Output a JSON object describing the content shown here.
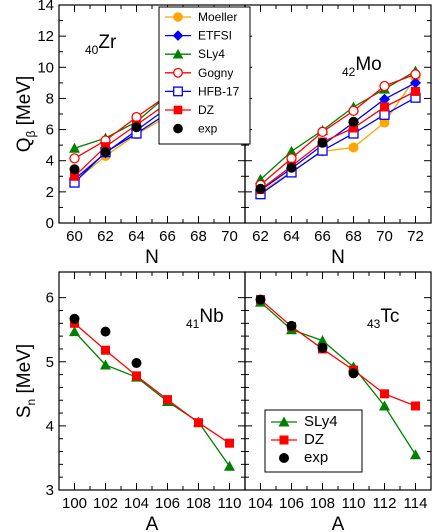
{
  "chart_data": [
    {
      "type": "line",
      "panel": "top-left",
      "annotation": {
        "sub": "40",
        "element": "Zr"
      },
      "xlabel": "N",
      "ylabel": {
        "main": "Q",
        "sub": "β",
        "unit": " [MeV]"
      },
      "xlim": [
        59,
        71
      ],
      "ylim": [
        0,
        14
      ],
      "xticks": [
        60,
        62,
        64,
        66,
        68,
        70
      ],
      "yticks": [
        0,
        2,
        4,
        6,
        8,
        10,
        12,
        14
      ],
      "x": [
        60,
        62,
        64,
        66,
        68,
        70
      ],
      "series": [
        {
          "name": "Moeller",
          "color": "#ffa500",
          "marker": "circle-filled",
          "values": [
            2.65,
            4.3,
            5.7,
            6.85,
            7.75,
            9.3
          ]
        },
        {
          "name": "ETFSI",
          "color": "#0000ff",
          "marker": "diamond-filled",
          "values": [
            2.8,
            4.5,
            5.95,
            7.4,
            8.55,
            9.7
          ]
        },
        {
          "name": "SLy4",
          "color": "#008000",
          "marker": "triangle-filled",
          "values": [
            4.8,
            5.45,
            6.5,
            8.2,
            9.8,
            11.3
          ]
        },
        {
          "name": "Gogny",
          "color": "#ff0000",
          "marker": "circle-open",
          "values": [
            4.15,
            5.3,
            6.8,
            8.2,
            9.65,
            10.1
          ]
        },
        {
          "name": "HFB-17",
          "color": "#0000ff",
          "marker": "square-open",
          "values": [
            2.6,
            4.55,
            5.75,
            7.05,
            8.25,
            9.55
          ]
        },
        {
          "name": "DZ",
          "color": "#ff0000",
          "marker": "square-filled",
          "values": [
            3.0,
            4.9,
            6.3,
            7.7,
            8.75,
            10.0
          ]
        },
        {
          "name": "exp",
          "color": "#000000",
          "marker": "circle-filled",
          "line": false,
          "values": [
            3.45,
            4.55,
            6.15,
            null,
            null,
            null
          ]
        }
      ]
    },
    {
      "type": "line",
      "panel": "top-right",
      "annotation": {
        "sub": "42",
        "element": "Mo"
      },
      "xlabel": "N",
      "xlim": [
        61,
        73
      ],
      "ylim": [
        0,
        14
      ],
      "xticks": [
        62,
        64,
        66,
        68,
        70,
        72
      ],
      "x": [
        62,
        64,
        66,
        68,
        70,
        72
      ],
      "series": [
        {
          "name": "Moeller",
          "color": "#ffa500",
          "marker": "circle-filled",
          "values": [
            1.95,
            3.3,
            4.6,
            4.85,
            6.45,
            9.35
          ]
        },
        {
          "name": "ETFSI",
          "color": "#0000ff",
          "marker": "diamond-filled",
          "values": [
            2.1,
            3.5,
            5.0,
            6.45,
            7.95,
            9.0
          ]
        },
        {
          "name": "SLy4",
          "color": "#008000",
          "marker": "triangle-filled",
          "values": [
            2.8,
            4.6,
            5.95,
            7.45,
            8.6,
            9.75
          ]
        },
        {
          "name": "Gogny",
          "color": "#ff0000",
          "marker": "circle-open",
          "values": [
            2.45,
            4.15,
            5.85,
            7.2,
            8.8,
            9.55
          ]
        },
        {
          "name": "HFB-17",
          "color": "#0000ff",
          "marker": "square-open",
          "values": [
            1.85,
            3.25,
            4.65,
            5.75,
            6.95,
            8.05
          ]
        },
        {
          "name": "DZ",
          "color": "#ff0000",
          "marker": "square-filled",
          "values": [
            2.15,
            3.65,
            5.2,
            6.1,
            7.45,
            8.45
          ]
        },
        {
          "name": "exp",
          "color": "#000000",
          "marker": "circle-filled",
          "line": false,
          "values": [
            2.2,
            3.55,
            5.15,
            6.5,
            null,
            null
          ]
        }
      ]
    },
    {
      "type": "line",
      "panel": "bottom-left",
      "annotation": {
        "sub": "41",
        "element": "Nb"
      },
      "xlabel": "A",
      "ylabel": {
        "main": "S",
        "sub": "n",
        "unit": " [MeV]"
      },
      "xlim": [
        99,
        111
      ],
      "ylim": [
        3,
        6.4
      ],
      "xticks": [
        100,
        102,
        104,
        106,
        108,
        110
      ],
      "yticks": [
        3,
        4,
        5,
        6
      ],
      "x": [
        100,
        102,
        104,
        106,
        108,
        110
      ],
      "series": [
        {
          "name": "SLy4",
          "color": "#008000",
          "marker": "triangle-filled",
          "values": [
            5.47,
            4.95,
            4.76,
            4.38,
            4.06,
            3.37
          ]
        },
        {
          "name": "DZ",
          "color": "#ff0000",
          "marker": "square-filled",
          "values": [
            5.6,
            5.18,
            4.78,
            4.41,
            4.05,
            3.73
          ]
        },
        {
          "name": "exp",
          "color": "#000000",
          "marker": "circle-filled",
          "line": false,
          "values": [
            5.67,
            5.47,
            4.98,
            null,
            null,
            null
          ]
        }
      ]
    },
    {
      "type": "line",
      "panel": "bottom-right",
      "annotation": {
        "sub": "43",
        "element": "Tc"
      },
      "xlabel": "A",
      "xlim": [
        103,
        115
      ],
      "ylim": [
        3,
        6.4
      ],
      "xticks": [
        104,
        106,
        108,
        110,
        112,
        114
      ],
      "x": [
        104,
        106,
        108,
        110,
        112,
        114
      ],
      "series": [
        {
          "name": "SLy4",
          "color": "#008000",
          "marker": "triangle-filled",
          "values": [
            5.93,
            5.5,
            5.33,
            4.92,
            4.31,
            3.55
          ]
        },
        {
          "name": "DZ",
          "color": "#ff0000",
          "marker": "square-filled",
          "values": [
            5.97,
            5.55,
            5.2,
            4.87,
            4.5,
            4.31
          ]
        },
        {
          "name": "exp",
          "color": "#000000",
          "marker": "circle-filled",
          "line": false,
          "values": [
            5.97,
            5.56,
            5.22,
            4.82,
            null,
            null
          ]
        }
      ]
    }
  ],
  "legends": {
    "top": {
      "placement": "top-right of left panel",
      "entries": [
        "Moeller",
        "ETFSI",
        "SLy4",
        "Gogny",
        "HFB-17",
        "DZ",
        "exp"
      ]
    },
    "bottom": {
      "placement": "bottom-left of right panel",
      "entries": [
        "SLy4",
        "DZ",
        "exp"
      ]
    }
  }
}
